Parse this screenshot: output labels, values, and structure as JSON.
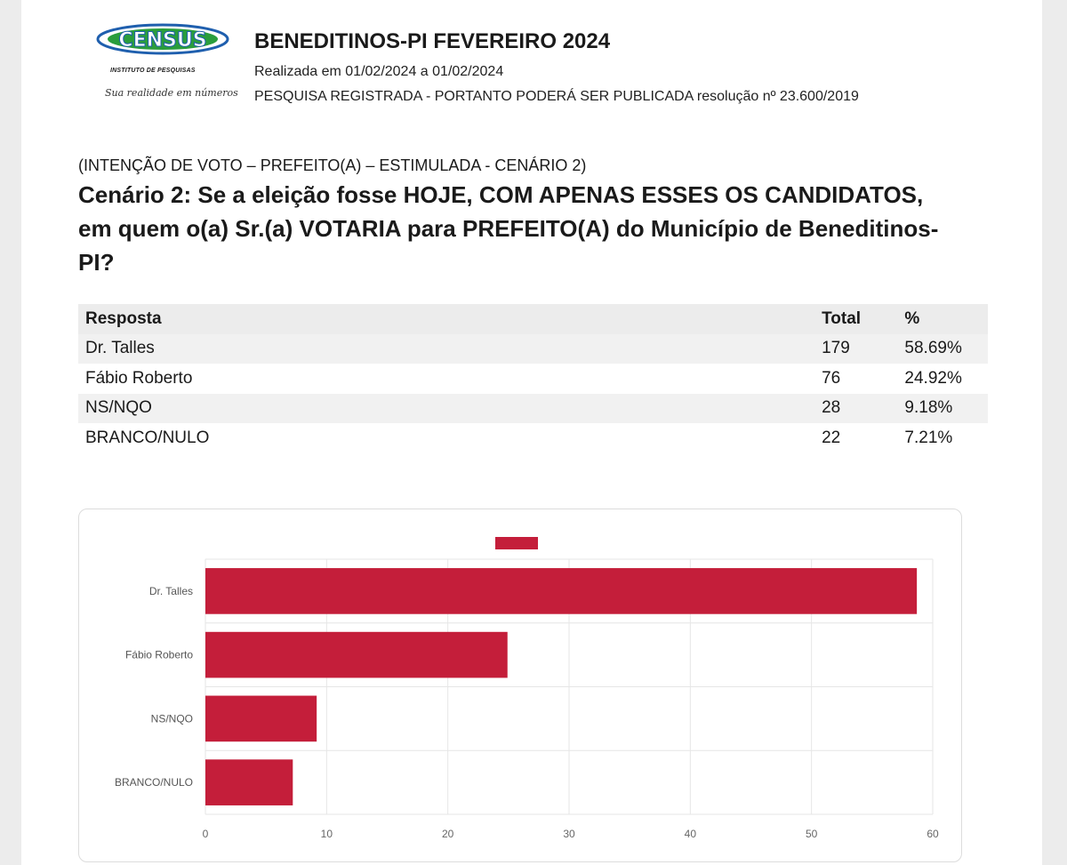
{
  "header": {
    "logo_text": "CENSUS",
    "logo_subtitle": "INSTITUTO DE PESQUISAS",
    "logo_tagline": "Sua realidade em números",
    "title": "BENEDITINOS-PI FEVEREIRO 2024",
    "date_range": "Realizada em 01/02/2024 a 01/02/2024",
    "registration": "PESQUISA REGISTRADA - PORTANTO PODERÁ SER PUBLICADA resolução nº 23.600/2019"
  },
  "question": {
    "kicker": "(INTENÇÃO DE VOTO – PREFEITO(A) – ESTIMULADA - CENÁRIO 2)",
    "text": "Cenário 2: Se a eleição fosse HOJE, COM APENAS ESSES OS CANDIDATOS, em quem o(a) Sr.(a) VOTARIA para PREFEITO(A) do Município de Beneditinos-PI?"
  },
  "table": {
    "headers": [
      "Resposta",
      "Total",
      "%"
    ],
    "rows": [
      {
        "resposta": "Dr. Talles",
        "total": "179",
        "pct": "58.69%"
      },
      {
        "resposta": "Fábio Roberto",
        "total": "76",
        "pct": "24.92%"
      },
      {
        "resposta": "NS/NQO",
        "total": "28",
        "pct": "9.18%"
      },
      {
        "resposta": "BRANCO/NULO",
        "total": "22",
        "pct": "7.21%"
      }
    ]
  },
  "colors": {
    "bar": "#c41e3a",
    "grid": "#e6e6e6"
  },
  "chart_data": {
    "type": "bar",
    "orientation": "horizontal",
    "categories": [
      "Dr. Talles",
      "Fábio Roberto",
      "NS/NQO",
      "BRANCO/NULO"
    ],
    "values": [
      58.69,
      24.92,
      9.18,
      7.21
    ],
    "xlim": [
      0,
      60
    ],
    "xticks": [
      "0",
      "10",
      "20",
      "30",
      "40",
      "50",
      "60"
    ],
    "legend": "top-center (swatch only)",
    "grid": true,
    "title": "",
    "xlabel": "",
    "ylabel": ""
  }
}
